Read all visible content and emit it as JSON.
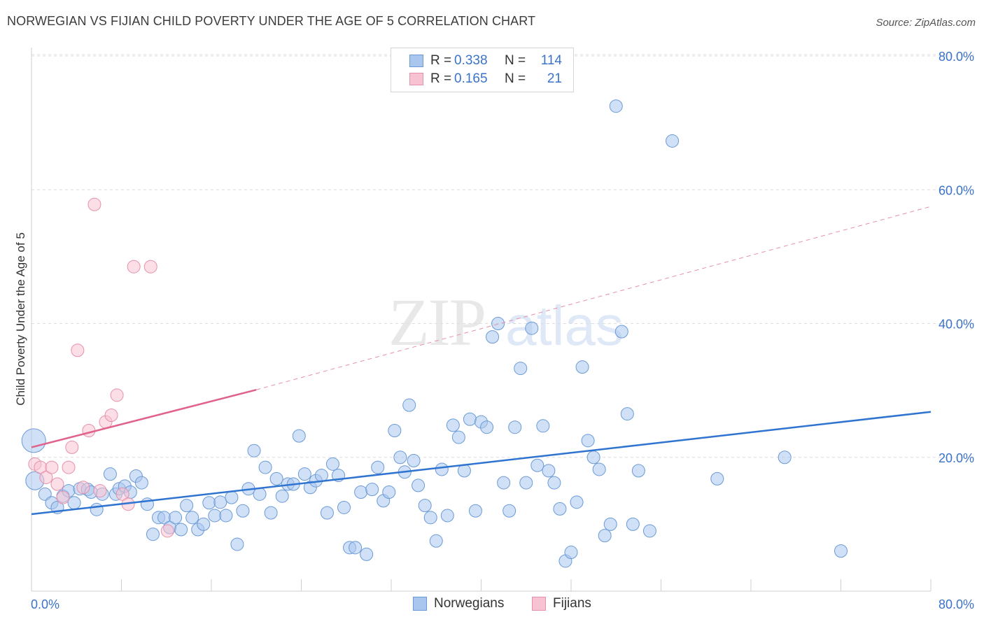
{
  "title": "NORWEGIAN VS FIJIAN CHILD POVERTY UNDER THE AGE OF 5 CORRELATION CHART",
  "source": "Source: ZipAtlas.com",
  "watermark": {
    "zip": "ZIP",
    "atlas": "atlas"
  },
  "legend": {
    "rows": [
      {
        "r_label": "R =",
        "r_value": "0.338",
        "n_label": "N =",
        "n_value": "114",
        "color": "#a9c7ee",
        "border": "#6a9ad6"
      },
      {
        "r_label": "R =",
        "r_value": "0.165",
        "n_label": "N =",
        "n_value": "21",
        "color": "#f7c3d2",
        "border": "#e690ab"
      }
    ]
  },
  "bottom_legend": [
    {
      "label": "Norwegians",
      "color": "#a9c7ee",
      "border": "#6a9ad6"
    },
    {
      "label": "Fijians",
      "color": "#f7c3d2",
      "border": "#e690ab"
    }
  ],
  "chart_data": {
    "type": "scatter",
    "title": "NORWEGIAN VS FIJIAN CHILD POVERTY UNDER THE AGE OF 5 CORRELATION CHART",
    "xlabel": "",
    "ylabel": "Child Poverty Under the Age of 5",
    "xlim": [
      0,
      80
    ],
    "ylim": [
      0,
      80
    ],
    "x_tick_labels": [
      "0.0%",
      "80.0%"
    ],
    "y_tick_labels": [
      "20.0%",
      "40.0%",
      "60.0%",
      "80.0%"
    ],
    "y_ticks": [
      20,
      40,
      60,
      80
    ],
    "grid": true,
    "series": [
      {
        "name": "Norwegians",
        "color": "#a9c7ee",
        "stroke": "#6a9ad6",
        "trend": {
          "x0": 0,
          "y0": 11.5,
          "x1": 80,
          "y1": 26.8,
          "color": "#2f74d0"
        },
        "points": [
          [
            0.2,
            22.5
          ],
          [
            0.3,
            16.5
          ],
          [
            1.2,
            14.5
          ],
          [
            1.8,
            13.2
          ],
          [
            2.3,
            12.5
          ],
          [
            2.8,
            14.2
          ],
          [
            3.3,
            15.0
          ],
          [
            3.8,
            13.2
          ],
          [
            4.3,
            15.3
          ],
          [
            5.0,
            15.2
          ],
          [
            5.3,
            14.8
          ],
          [
            5.8,
            12.2
          ],
          [
            6.3,
            14.5
          ],
          [
            7.0,
            17.5
          ],
          [
            7.5,
            14.5
          ],
          [
            7.8,
            15.3
          ],
          [
            8.3,
            15.7
          ],
          [
            8.8,
            14.8
          ],
          [
            9.3,
            17.2
          ],
          [
            9.8,
            16.2
          ],
          [
            10.3,
            13.0
          ],
          [
            10.8,
            8.5
          ],
          [
            11.3,
            11.0
          ],
          [
            11.8,
            11.0
          ],
          [
            12.3,
            9.5
          ],
          [
            12.8,
            11.0
          ],
          [
            13.3,
            9.2
          ],
          [
            13.8,
            12.8
          ],
          [
            14.3,
            11.0
          ],
          [
            14.8,
            9.2
          ],
          [
            15.3,
            10.0
          ],
          [
            15.8,
            13.2
          ],
          [
            16.3,
            11.3
          ],
          [
            16.8,
            13.3
          ],
          [
            17.3,
            11.3
          ],
          [
            17.8,
            14.0
          ],
          [
            18.3,
            7.0
          ],
          [
            18.8,
            12.0
          ],
          [
            19.3,
            15.3
          ],
          [
            19.8,
            21.0
          ],
          [
            20.3,
            14.5
          ],
          [
            20.8,
            18.5
          ],
          [
            21.3,
            11.7
          ],
          [
            21.8,
            16.8
          ],
          [
            22.3,
            14.2
          ],
          [
            22.8,
            16.0
          ],
          [
            23.3,
            16.0
          ],
          [
            23.8,
            23.2
          ],
          [
            24.3,
            17.5
          ],
          [
            24.8,
            15.5
          ],
          [
            25.3,
            16.5
          ],
          [
            25.8,
            17.3
          ],
          [
            26.3,
            11.7
          ],
          [
            26.8,
            19.0
          ],
          [
            27.3,
            17.3
          ],
          [
            27.8,
            12.5
          ],
          [
            28.3,
            6.5
          ],
          [
            28.8,
            6.5
          ],
          [
            29.3,
            14.8
          ],
          [
            29.8,
            5.5
          ],
          [
            30.3,
            15.2
          ],
          [
            30.8,
            18.5
          ],
          [
            31.3,
            13.5
          ],
          [
            31.8,
            14.8
          ],
          [
            32.3,
            24.0
          ],
          [
            32.8,
            20.0
          ],
          [
            33.2,
            17.8
          ],
          [
            33.6,
            27.8
          ],
          [
            34.0,
            19.5
          ],
          [
            34.4,
            15.8
          ],
          [
            35.0,
            12.8
          ],
          [
            35.5,
            11.0
          ],
          [
            36.0,
            7.5
          ],
          [
            36.5,
            18.2
          ],
          [
            37.0,
            11.3
          ],
          [
            37.5,
            24.8
          ],
          [
            38.0,
            23.0
          ],
          [
            38.5,
            18.0
          ],
          [
            39.0,
            25.7
          ],
          [
            39.5,
            12.0
          ],
          [
            40.0,
            25.3
          ],
          [
            40.5,
            24.5
          ],
          [
            41.0,
            38.0
          ],
          [
            41.5,
            40.0
          ],
          [
            42.0,
            16.2
          ],
          [
            42.5,
            12.0
          ],
          [
            43.0,
            24.5
          ],
          [
            43.5,
            33.3
          ],
          [
            44.0,
            16.2
          ],
          [
            44.5,
            39.3
          ],
          [
            45.0,
            18.8
          ],
          [
            45.5,
            24.7
          ],
          [
            46.0,
            18.0
          ],
          [
            46.5,
            16.2
          ],
          [
            47.0,
            12.3
          ],
          [
            47.5,
            4.5
          ],
          [
            48.0,
            5.8
          ],
          [
            48.5,
            13.3
          ],
          [
            49.0,
            33.5
          ],
          [
            49.5,
            22.5
          ],
          [
            50.0,
            20.0
          ],
          [
            50.5,
            18.2
          ],
          [
            51.0,
            8.3
          ],
          [
            51.5,
            10.0
          ],
          [
            52.0,
            72.5
          ],
          [
            52.5,
            38.8
          ],
          [
            53.0,
            26.5
          ],
          [
            53.5,
            10.0
          ],
          [
            54.0,
            18.0
          ],
          [
            55.0,
            9.0
          ],
          [
            57.0,
            67.3
          ],
          [
            61.0,
            16.8
          ],
          [
            67.0,
            20.0
          ],
          [
            72.0,
            6.0
          ]
        ]
      },
      {
        "name": "Fijians",
        "color": "#f7c3d2",
        "stroke": "#e690ab",
        "trend": {
          "x0": 0,
          "y0": 21.5,
          "x1": 20,
          "y1": 30.1,
          "dash_x1": 80,
          "dash_y1": 57.5,
          "color": "#e0628b"
        },
        "points": [
          [
            0.3,
            19.0
          ],
          [
            0.8,
            18.5
          ],
          [
            1.3,
            17.0
          ],
          [
            1.8,
            18.5
          ],
          [
            2.3,
            16.0
          ],
          [
            2.8,
            14.0
          ],
          [
            3.3,
            18.5
          ],
          [
            3.6,
            21.5
          ],
          [
            4.1,
            36.0
          ],
          [
            4.6,
            15.5
          ],
          [
            5.1,
            24.0
          ],
          [
            5.6,
            57.8
          ],
          [
            6.1,
            15.0
          ],
          [
            6.6,
            25.3
          ],
          [
            7.1,
            26.3
          ],
          [
            7.6,
            29.3
          ],
          [
            8.1,
            14.5
          ],
          [
            8.6,
            13.0
          ],
          [
            9.1,
            48.5
          ],
          [
            10.6,
            48.5
          ],
          [
            12.1,
            9.0
          ]
        ]
      }
    ]
  }
}
